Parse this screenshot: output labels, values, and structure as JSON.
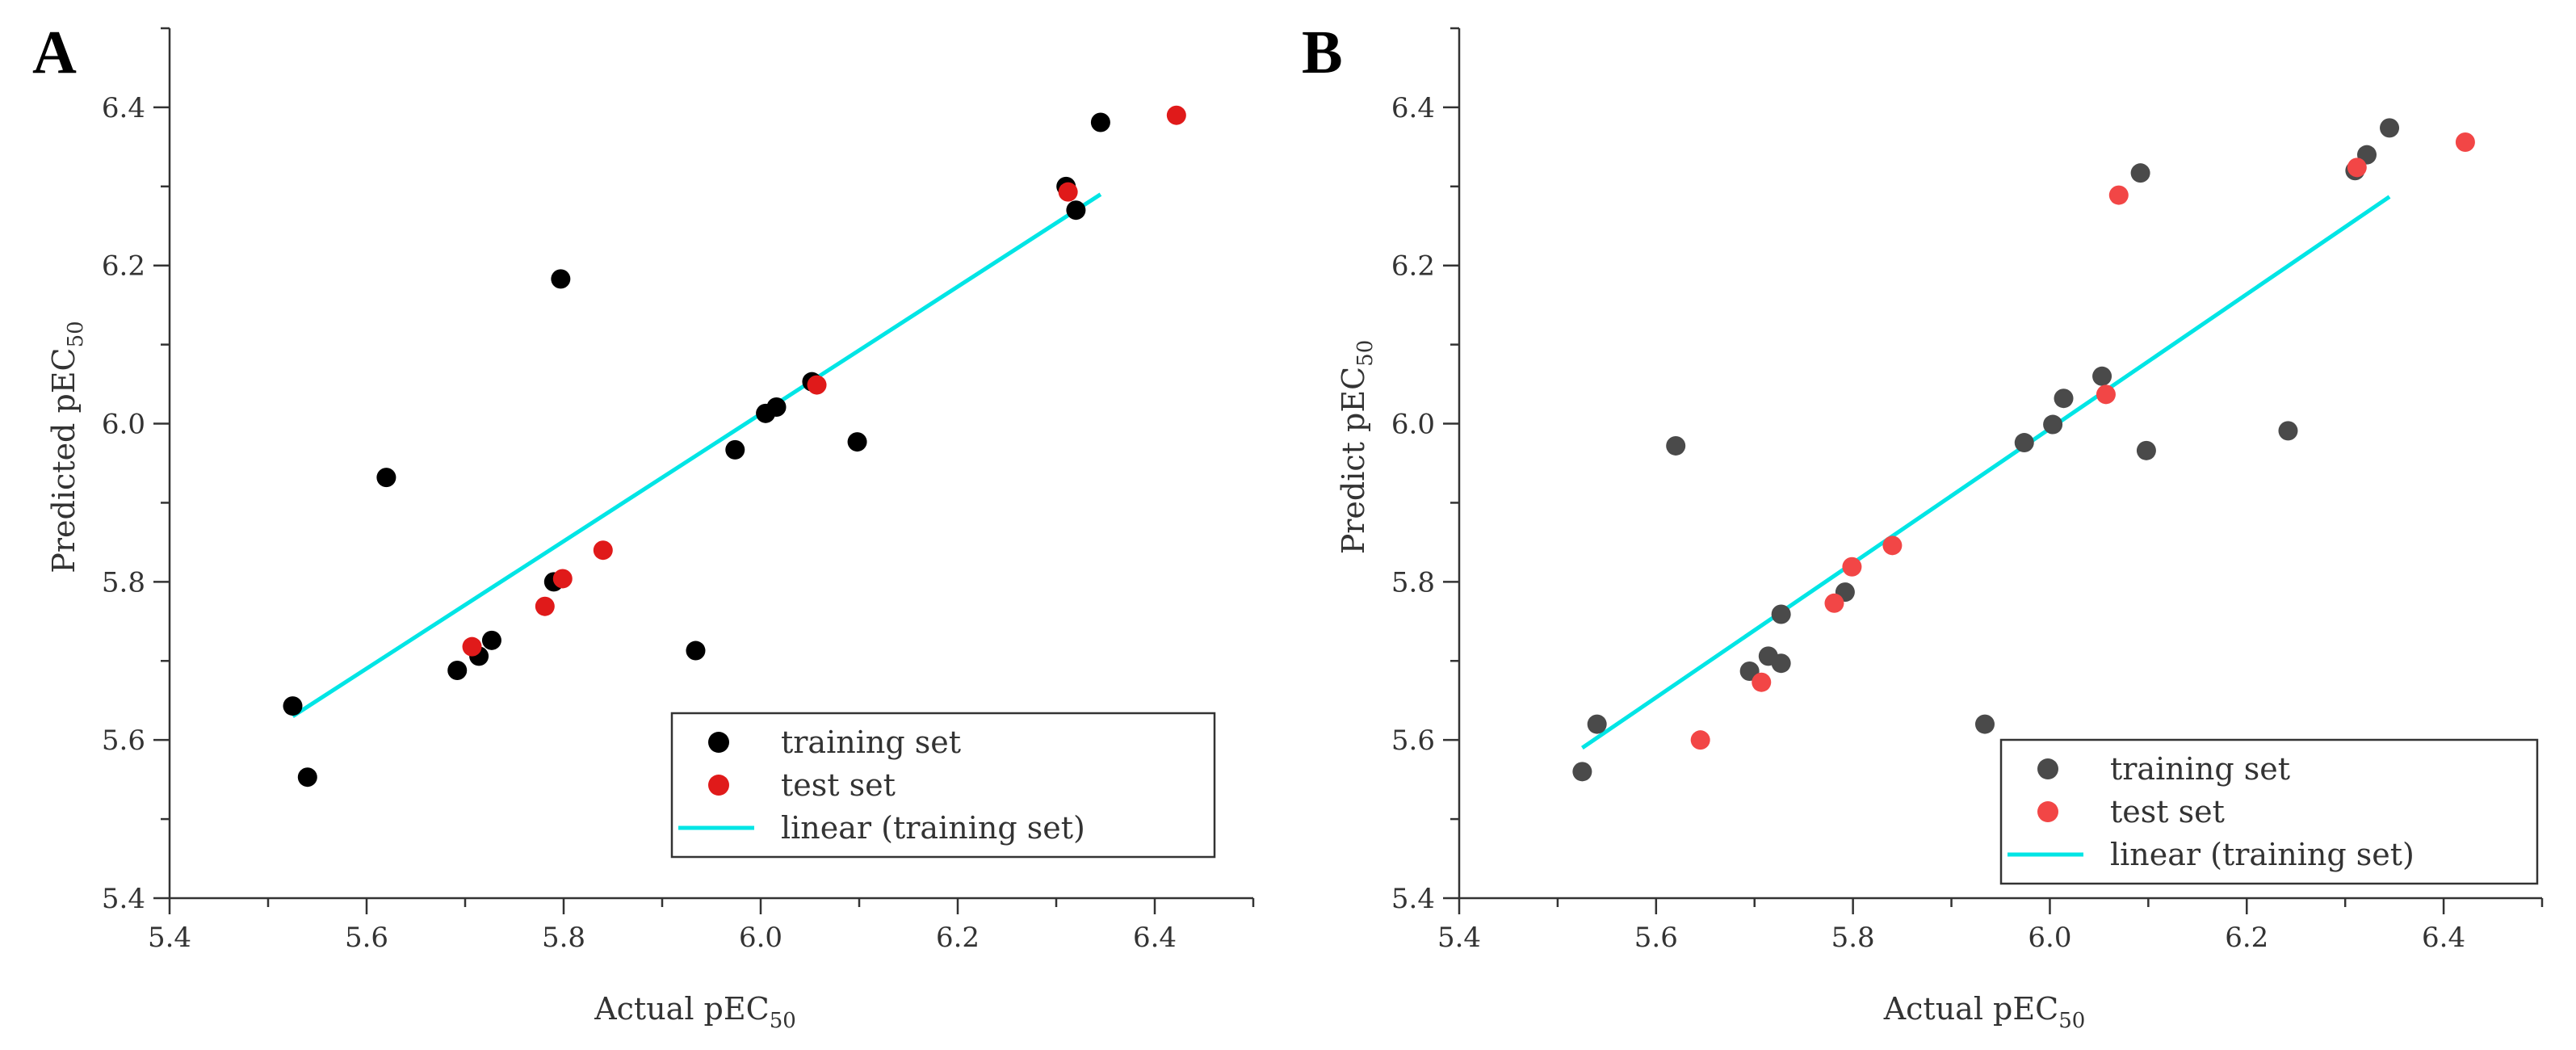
{
  "chart_data": [
    {
      "panel": "A",
      "type": "scatter",
      "xlabel": "Actual pEC",
      "xlabel_sub": "50",
      "ylabel": "Predicted pEC",
      "ylabel_sub": "50",
      "xlim": [
        5.4,
        6.5
      ],
      "ylim": [
        5.4,
        6.5
      ],
      "xticks": [
        "5.4",
        "5.6",
        "5.8",
        "6.0",
        "6.2",
        "6.4"
      ],
      "yticks": [
        "5.4",
        "5.6",
        "5.8",
        "6.0",
        "6.2",
        "6.4"
      ],
      "legend": [
        "training set",
        "test set",
        "linear (training set)"
      ],
      "legend_position": "bottom-right",
      "colors": {
        "training": "#000000",
        "test": "#e01a1a",
        "fit": "#00e5e5"
      },
      "series": [
        {
          "name": "training set",
          "points": [
            [
              5.525,
              5.643
            ],
            [
              5.54,
              5.553
            ],
            [
              5.62,
              5.932
            ],
            [
              5.692,
              5.688
            ],
            [
              5.714,
              5.706
            ],
            [
              5.727,
              5.726
            ],
            [
              5.79,
              5.8
            ],
            [
              5.797,
              6.183
            ],
            [
              5.934,
              5.713
            ],
            [
              5.974,
              5.967
            ],
            [
              6.005,
              6.013
            ],
            [
              6.016,
              6.021
            ],
            [
              6.052,
              6.053
            ],
            [
              6.098,
              5.977
            ],
            [
              6.31,
              6.3
            ],
            [
              6.32,
              6.27
            ],
            [
              6.345,
              6.381
            ]
          ]
        },
        {
          "name": "test set",
          "points": [
            [
              5.707,
              5.718
            ],
            [
              5.781,
              5.769
            ],
            [
              5.799,
              5.804
            ],
            [
              5.84,
              5.84
            ],
            [
              6.057,
              6.049
            ],
            [
              6.312,
              6.293
            ],
            [
              6.422,
              6.39
            ]
          ]
        },
        {
          "name": "linear (training set)",
          "line": [
            [
              5.525,
              5.63
            ],
            [
              6.345,
              6.29
            ]
          ]
        }
      ]
    },
    {
      "panel": "B",
      "type": "scatter",
      "xlabel": "Actual pEC",
      "xlabel_sub": "50",
      "ylabel": "Predict pEC",
      "ylabel_sub": "50",
      "xlim": [
        5.4,
        6.5
      ],
      "ylim": [
        5.4,
        6.5
      ],
      "xticks": [
        "5.4",
        "5.6",
        "5.8",
        "6.0",
        "6.2",
        "6.4"
      ],
      "yticks": [
        "5.4",
        "5.6",
        "5.8",
        "6.0",
        "6.2",
        "6.4"
      ],
      "legend": [
        "training set",
        "test set",
        "linear (training set)"
      ],
      "legend_position": "bottom-right",
      "colors": {
        "training": "#4a4a4a",
        "test": "#f24646",
        "fit": "#00e5e5"
      },
      "series": [
        {
          "name": "training set",
          "points": [
            [
              5.525,
              5.56
            ],
            [
              5.54,
              5.62
            ],
            [
              5.62,
              5.972
            ],
            [
              5.695,
              5.687
            ],
            [
              5.714,
              5.706
            ],
            [
              5.727,
              5.697
            ],
            [
              5.727,
              5.759
            ],
            [
              5.792,
              5.787
            ],
            [
              5.934,
              5.62
            ],
            [
              5.974,
              5.976
            ],
            [
              6.003,
              5.999
            ],
            [
              6.014,
              6.032
            ],
            [
              6.053,
              6.06
            ],
            [
              6.092,
              6.317
            ],
            [
              6.098,
              5.966
            ],
            [
              6.242,
              5.991
            ],
            [
              6.31,
              6.32
            ],
            [
              6.322,
              6.34
            ],
            [
              6.345,
              6.374
            ]
          ]
        },
        {
          "name": "test set",
          "points": [
            [
              5.645,
              5.6
            ],
            [
              5.707,
              5.673
            ],
            [
              5.781,
              5.773
            ],
            [
              5.799,
              5.819
            ],
            [
              5.84,
              5.846
            ],
            [
              6.057,
              6.037
            ],
            [
              6.07,
              6.289
            ],
            [
              6.312,
              6.324
            ],
            [
              6.422,
              6.356
            ]
          ]
        },
        {
          "name": "linear (training set)",
          "line": [
            [
              5.525,
              5.59
            ],
            [
              6.345,
              6.287
            ]
          ]
        }
      ]
    }
  ]
}
